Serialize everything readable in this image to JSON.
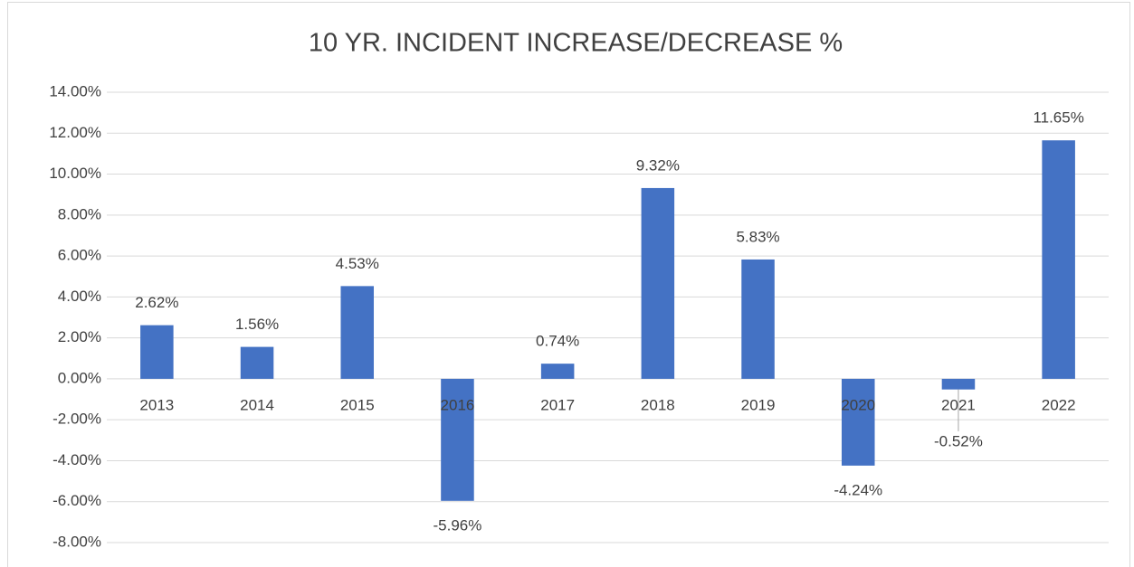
{
  "chart_data": {
    "type": "bar",
    "title": "10 YR. INCIDENT INCREASE/DECREASE %",
    "categories": [
      "2013",
      "2014",
      "2015",
      "2016",
      "2017",
      "2018",
      "2019",
      "2020",
      "2021",
      "2022"
    ],
    "values": [
      2.62,
      1.56,
      4.53,
      -5.96,
      0.74,
      9.32,
      5.83,
      -4.24,
      -0.52,
      11.65
    ],
    "value_labels": [
      "2.62%",
      "1.56%",
      "4.53%",
      "-5.96%",
      "0.74%",
      "9.32%",
      "5.83%",
      "-4.24%",
      "-0.52%",
      "11.65%"
    ],
    "color": "#4472c4",
    "ylim": [
      -8,
      14
    ],
    "yticks": [
      {
        "value": -8,
        "label": "-8.00%"
      },
      {
        "value": -6,
        "label": "-6.00%"
      },
      {
        "value": -4,
        "label": "-4.00%"
      },
      {
        "value": -2,
        "label": "-2.00%"
      },
      {
        "value": 0,
        "label": "0.00%"
      },
      {
        "value": 2,
        "label": "2.00%"
      },
      {
        "value": 4,
        "label": "4.00%"
      },
      {
        "value": 6,
        "label": "6.00%"
      },
      {
        "value": 8,
        "label": "8.00%"
      },
      {
        "value": 10,
        "label": "10.00%"
      },
      {
        "value": 12,
        "label": "12.00%"
      },
      {
        "value": 14,
        "label": "14.00%"
      }
    ],
    "grid": true
  }
}
